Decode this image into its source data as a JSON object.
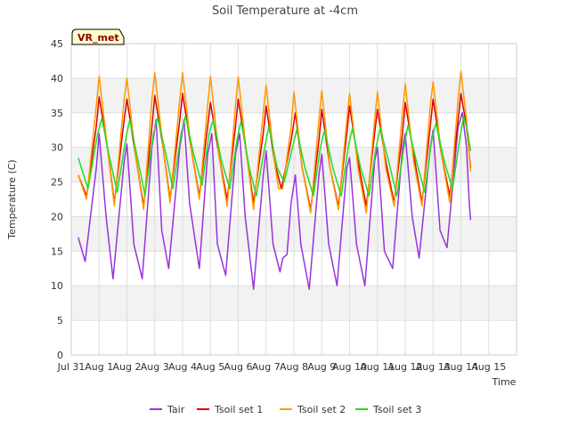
{
  "chart_data": {
    "type": "line",
    "title": "Soil Temperature at -4cm",
    "xlabel": "Time",
    "ylabel": "Temperature (C)",
    "badge": "VR_met",
    "xlim": [
      0,
      16
    ],
    "ylim": [
      0,
      45
    ],
    "x_ticks": [
      {
        "x": 0,
        "label": "Jul 31"
      },
      {
        "x": 1,
        "label": "Aug 1"
      },
      {
        "x": 2,
        "label": "Aug 2"
      },
      {
        "x": 3,
        "label": "Aug 3"
      },
      {
        "x": 4,
        "label": "Aug 4"
      },
      {
        "x": 5,
        "label": "Aug 5"
      },
      {
        "x": 6,
        "label": "Aug 6"
      },
      {
        "x": 7,
        "label": "Aug 7"
      },
      {
        "x": 8,
        "label": "Aug 8"
      },
      {
        "x": 9,
        "label": "Aug 9"
      },
      {
        "x": 10,
        "label": "Aug 10"
      },
      {
        "x": 11,
        "label": "Aug 11"
      },
      {
        "x": 12,
        "label": "Aug 12"
      },
      {
        "x": 13,
        "label": "Aug 13"
      },
      {
        "x": 14,
        "label": "Aug 14"
      },
      {
        "x": 15,
        "label": "Aug 15"
      }
    ],
    "y_ticks": [
      0,
      5,
      10,
      15,
      20,
      25,
      30,
      35,
      40,
      45
    ],
    "series_meta": [
      {
        "name": "Tair",
        "color": "#9933dd"
      },
      {
        "name": "Tsoil set 1",
        "color": "#dd0000"
      },
      {
        "name": "Tsoil set 2",
        "color": "#ff9900"
      },
      {
        "name": "Tsoil set 3",
        "color": "#22dd22"
      }
    ],
    "series": [
      {
        "name": "Tair",
        "points": [
          [
            0.25,
            17.0
          ],
          [
            0.5,
            13.5
          ],
          [
            0.9,
            27.0
          ],
          [
            1.0,
            32.0
          ],
          [
            1.25,
            20.0
          ],
          [
            1.5,
            11.0
          ],
          [
            1.9,
            28.0
          ],
          [
            2.0,
            30.5
          ],
          [
            2.25,
            16.0
          ],
          [
            2.55,
            11.0
          ],
          [
            2.9,
            30.0
          ],
          [
            3.05,
            34.0
          ],
          [
            3.25,
            18.0
          ],
          [
            3.5,
            12.5
          ],
          [
            3.9,
            30.0
          ],
          [
            4.05,
            34.0
          ],
          [
            4.25,
            22.0
          ],
          [
            4.6,
            12.5
          ],
          [
            4.9,
            29.0
          ],
          [
            5.05,
            32.0
          ],
          [
            5.25,
            16.0
          ],
          [
            5.55,
            11.5
          ],
          [
            5.9,
            29.0
          ],
          [
            6.05,
            32.0
          ],
          [
            6.25,
            20.0
          ],
          [
            6.55,
            9.5
          ],
          [
            6.9,
            26.0
          ],
          [
            7.0,
            29.5
          ],
          [
            7.25,
            16.0
          ],
          [
            7.5,
            12.0
          ],
          [
            7.6,
            14.0
          ],
          [
            7.75,
            14.5
          ],
          [
            7.9,
            22.0
          ],
          [
            8.05,
            26.0
          ],
          [
            8.25,
            16.0
          ],
          [
            8.55,
            9.5
          ],
          [
            8.9,
            26.0
          ],
          [
            9.0,
            29.0
          ],
          [
            9.25,
            16.0
          ],
          [
            9.55,
            10.0
          ],
          [
            9.9,
            27.0
          ],
          [
            10.0,
            28.5
          ],
          [
            10.25,
            16.0
          ],
          [
            10.55,
            10.0
          ],
          [
            10.9,
            28.0
          ],
          [
            11.0,
            30.0
          ],
          [
            11.25,
            15.0
          ],
          [
            11.55,
            12.5
          ],
          [
            11.9,
            30.0
          ],
          [
            12.0,
            32.0
          ],
          [
            12.25,
            20.0
          ],
          [
            12.5,
            14.0
          ],
          [
            12.9,
            30.0
          ],
          [
            13.0,
            32.5
          ],
          [
            13.25,
            18.0
          ],
          [
            13.5,
            15.5
          ],
          [
            13.9,
            33.0
          ],
          [
            14.05,
            35.0
          ],
          [
            14.2,
            30.0
          ],
          [
            14.3,
            22.0
          ],
          [
            14.35,
            19.5
          ]
        ]
      },
      {
        "name": "Tsoil set 1",
        "points": [
          [
            0.25,
            26.0
          ],
          [
            0.55,
            23.0
          ],
          [
            0.9,
            33.0
          ],
          [
            1.0,
            37.3
          ],
          [
            1.3,
            30.0
          ],
          [
            1.55,
            22.0
          ],
          [
            1.9,
            34.0
          ],
          [
            2.0,
            37.0
          ],
          [
            2.3,
            29.0
          ],
          [
            2.6,
            21.5
          ],
          [
            2.9,
            33.0
          ],
          [
            3.0,
            37.5
          ],
          [
            3.3,
            30.0
          ],
          [
            3.55,
            22.5
          ],
          [
            3.9,
            34.0
          ],
          [
            4.0,
            37.8
          ],
          [
            4.3,
            30.0
          ],
          [
            4.6,
            23.0
          ],
          [
            4.9,
            33.0
          ],
          [
            5.0,
            36.5
          ],
          [
            5.3,
            29.0
          ],
          [
            5.6,
            22.5
          ],
          [
            5.9,
            33.0
          ],
          [
            6.0,
            37.0
          ],
          [
            6.3,
            29.0
          ],
          [
            6.55,
            22.0
          ],
          [
            6.9,
            32.0
          ],
          [
            7.0,
            36.0
          ],
          [
            7.3,
            28.0
          ],
          [
            7.55,
            24.0
          ],
          [
            7.9,
            31.0
          ],
          [
            8.05,
            35.0
          ],
          [
            8.3,
            27.0
          ],
          [
            8.6,
            21.0
          ],
          [
            8.9,
            31.0
          ],
          [
            9.0,
            35.5
          ],
          [
            9.3,
            27.0
          ],
          [
            9.6,
            21.5
          ],
          [
            9.9,
            32.0
          ],
          [
            10.0,
            36.0
          ],
          [
            10.3,
            28.0
          ],
          [
            10.6,
            21.5
          ],
          [
            10.9,
            32.0
          ],
          [
            11.0,
            35.5
          ],
          [
            11.3,
            28.0
          ],
          [
            11.6,
            22.0
          ],
          [
            11.9,
            32.0
          ],
          [
            12.0,
            36.5
          ],
          [
            12.3,
            29.0
          ],
          [
            12.6,
            22.0
          ],
          [
            12.9,
            33.0
          ],
          [
            13.0,
            37.0
          ],
          [
            13.3,
            29.0
          ],
          [
            13.6,
            23.0
          ],
          [
            13.9,
            34.0
          ],
          [
            14.0,
            37.8
          ],
          [
            14.2,
            33.0
          ],
          [
            14.35,
            27.0
          ]
        ]
      },
      {
        "name": "Tsoil set 2",
        "points": [
          [
            0.25,
            26.0
          ],
          [
            0.55,
            22.5
          ],
          [
            0.9,
            36.0
          ],
          [
            1.0,
            40.3
          ],
          [
            1.3,
            30.0
          ],
          [
            1.55,
            21.5
          ],
          [
            1.9,
            37.0
          ],
          [
            2.0,
            40.0
          ],
          [
            2.3,
            29.0
          ],
          [
            2.6,
            21.0
          ],
          [
            2.9,
            37.0
          ],
          [
            3.0,
            40.8
          ],
          [
            3.3,
            30.0
          ],
          [
            3.55,
            22.0
          ],
          [
            3.9,
            37.0
          ],
          [
            4.0,
            40.8
          ],
          [
            4.3,
            30.0
          ],
          [
            4.6,
            22.5
          ],
          [
            4.9,
            36.0
          ],
          [
            5.0,
            40.3
          ],
          [
            5.3,
            29.0
          ],
          [
            5.6,
            21.5
          ],
          [
            5.9,
            36.0
          ],
          [
            6.0,
            40.2
          ],
          [
            6.3,
            29.0
          ],
          [
            6.55,
            21.0
          ],
          [
            6.9,
            35.0
          ],
          [
            7.0,
            39.0
          ],
          [
            7.3,
            28.0
          ],
          [
            7.45,
            24.0
          ],
          [
            7.6,
            24.0
          ],
          [
            7.9,
            33.0
          ],
          [
            8.0,
            38.0
          ],
          [
            8.3,
            27.0
          ],
          [
            8.6,
            20.5
          ],
          [
            8.9,
            34.0
          ],
          [
            9.0,
            38.2
          ],
          [
            9.3,
            27.0
          ],
          [
            9.6,
            21.0
          ],
          [
            9.9,
            34.0
          ],
          [
            10.0,
            37.8
          ],
          [
            10.3,
            27.0
          ],
          [
            10.6,
            20.5
          ],
          [
            10.9,
            34.0
          ],
          [
            11.0,
            38.0
          ],
          [
            11.3,
            27.0
          ],
          [
            11.6,
            21.5
          ],
          [
            11.9,
            35.0
          ],
          [
            12.0,
            39.2
          ],
          [
            12.3,
            28.0
          ],
          [
            12.6,
            21.5
          ],
          [
            12.9,
            36.0
          ],
          [
            13.0,
            39.5
          ],
          [
            13.3,
            29.0
          ],
          [
            13.6,
            22.0
          ],
          [
            13.9,
            37.0
          ],
          [
            14.0,
            41.0
          ],
          [
            14.2,
            34.0
          ],
          [
            14.35,
            26.5
          ]
        ]
      },
      {
        "name": "Tsoil set 3",
        "points": [
          [
            0.25,
            28.5
          ],
          [
            0.6,
            24.0
          ],
          [
            0.95,
            32.0
          ],
          [
            1.1,
            34.2
          ],
          [
            1.35,
            29.0
          ],
          [
            1.65,
            23.5
          ],
          [
            1.95,
            31.0
          ],
          [
            2.1,
            34.0
          ],
          [
            2.4,
            28.0
          ],
          [
            2.65,
            23.0
          ],
          [
            2.95,
            32.0
          ],
          [
            3.1,
            34.3
          ],
          [
            3.4,
            29.0
          ],
          [
            3.65,
            24.0
          ],
          [
            3.95,
            32.0
          ],
          [
            4.1,
            34.5
          ],
          [
            4.4,
            29.0
          ],
          [
            4.7,
            24.5
          ],
          [
            4.95,
            32.0
          ],
          [
            5.1,
            34.0
          ],
          [
            5.4,
            28.0
          ],
          [
            5.7,
            24.0
          ],
          [
            5.95,
            31.0
          ],
          [
            6.1,
            33.8
          ],
          [
            6.4,
            27.0
          ],
          [
            6.65,
            23.0
          ],
          [
            6.95,
            30.0
          ],
          [
            7.1,
            33.0
          ],
          [
            7.4,
            27.0
          ],
          [
            7.65,
            25.0
          ],
          [
            7.95,
            30.0
          ],
          [
            8.1,
            32.5
          ],
          [
            8.4,
            27.0
          ],
          [
            8.7,
            23.0
          ],
          [
            8.95,
            30.0
          ],
          [
            9.1,
            32.5
          ],
          [
            9.4,
            27.0
          ],
          [
            9.7,
            23.0
          ],
          [
            9.95,
            30.0
          ],
          [
            10.1,
            32.7
          ],
          [
            10.4,
            27.0
          ],
          [
            10.7,
            23.0
          ],
          [
            10.95,
            30.0
          ],
          [
            11.1,
            32.8
          ],
          [
            11.4,
            28.0
          ],
          [
            11.7,
            23.0
          ],
          [
            11.95,
            30.0
          ],
          [
            12.1,
            33.2
          ],
          [
            12.4,
            28.0
          ],
          [
            12.7,
            23.5
          ],
          [
            12.95,
            31.0
          ],
          [
            13.1,
            33.5
          ],
          [
            13.4,
            28.0
          ],
          [
            13.7,
            24.0
          ],
          [
            13.95,
            31.0
          ],
          [
            14.1,
            34.5
          ],
          [
            14.25,
            32.0
          ],
          [
            14.35,
            29.5
          ]
        ]
      }
    ]
  }
}
